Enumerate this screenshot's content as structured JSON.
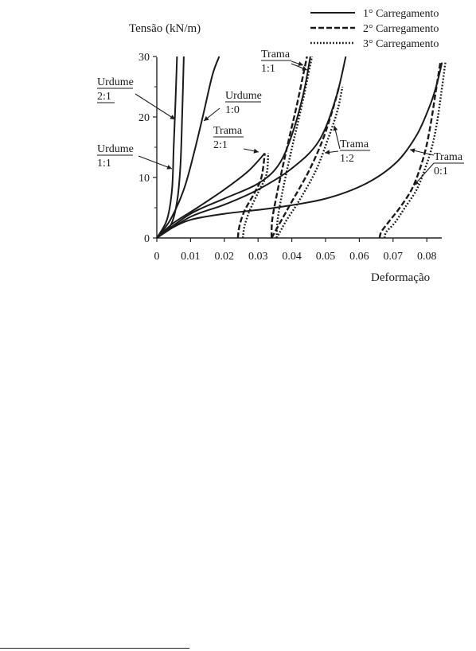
{
  "chart_data": {
    "type": "line",
    "title": "",
    "ylabel": "Tensão (kN/m)",
    "xlabel": "Deformação",
    "xlim": [
      0,
      0.085
    ],
    "ylim": [
      0,
      30
    ],
    "x_ticks": [
      0,
      0.01,
      0.02,
      0.03,
      0.04,
      0.05,
      0.06,
      0.07,
      0.08
    ],
    "x_tick_labels": [
      "0",
      "0.01",
      "0.02",
      "0.03",
      "0.04",
      "0.05",
      "0.06",
      "0.07",
      "0.08"
    ],
    "y_ticks": [
      0,
      10,
      20,
      30
    ],
    "y_tick_labels": [
      "0",
      "10",
      "20",
      "30"
    ],
    "grid": false,
    "legend_position": "top-right",
    "legend": [
      {
        "label": "1° Carregamento",
        "style": "solid"
      },
      {
        "label": "2° Carregamento",
        "style": "dashed"
      },
      {
        "label": "3° Carregamento",
        "style": "dotted"
      }
    ],
    "series": [
      {
        "group": "Urdume 2:1",
        "loading": 1,
        "style": "solid",
        "points": [
          [
            0,
            0
          ],
          [
            0.003,
            3
          ],
          [
            0.0045,
            8
          ],
          [
            0.005,
            15
          ],
          [
            0.0055,
            22
          ],
          [
            0.006,
            30
          ]
        ]
      },
      {
        "group": "Urdume 1:1",
        "loading": 1,
        "style": "solid",
        "points": [
          [
            0,
            0
          ],
          [
            0.004,
            2
          ],
          [
            0.006,
            6
          ],
          [
            0.007,
            12
          ],
          [
            0.0075,
            20
          ],
          [
            0.008,
            30
          ]
        ]
      },
      {
        "group": "Urdume 1:0",
        "loading": 1,
        "style": "solid",
        "points": [
          [
            0,
            0
          ],
          [
            0.004,
            3
          ],
          [
            0.008,
            8
          ],
          [
            0.011,
            14
          ],
          [
            0.014,
            21
          ],
          [
            0.0165,
            27
          ],
          [
            0.0185,
            30
          ]
        ]
      },
      {
        "group": "Trama 2:1",
        "loading": 1,
        "style": "solid",
        "points": [
          [
            0,
            0
          ],
          [
            0.005,
            2.5
          ],
          [
            0.012,
            5
          ],
          [
            0.02,
            8
          ],
          [
            0.027,
            11
          ],
          [
            0.032,
            14
          ]
        ]
      },
      {
        "group": "Trama 2:1",
        "loading": 2,
        "style": "dashed",
        "points": [
          [
            0.024,
            0
          ],
          [
            0.0245,
            2
          ],
          [
            0.026,
            4.5
          ],
          [
            0.029,
            7.5
          ],
          [
            0.031,
            10
          ],
          [
            0.032,
            14
          ]
        ]
      },
      {
        "group": "Trama 2:1",
        "loading": 3,
        "style": "dotted",
        "points": [
          [
            0.0255,
            0
          ],
          [
            0.026,
            2
          ],
          [
            0.0275,
            4.5
          ],
          [
            0.03,
            7.5
          ],
          [
            0.0325,
            10.5
          ],
          [
            0.033,
            14
          ]
        ]
      },
      {
        "group": "Trama 1:1",
        "loading": 1,
        "style": "solid",
        "points": [
          [
            0,
            0
          ],
          [
            0.01,
            4
          ],
          [
            0.02,
            6.5
          ],
          [
            0.03,
            9
          ],
          [
            0.036,
            12
          ],
          [
            0.04,
            17
          ],
          [
            0.0435,
            24
          ],
          [
            0.0455,
            30
          ]
        ]
      },
      {
        "group": "Trama 1:1",
        "loading": 2,
        "style": "dashed",
        "points": [
          [
            0.034,
            0
          ],
          [
            0.0342,
            3
          ],
          [
            0.0355,
            7
          ],
          [
            0.037,
            11
          ],
          [
            0.039,
            16
          ],
          [
            0.0415,
            22
          ],
          [
            0.0445,
            30
          ]
        ]
      },
      {
        "group": "Trama 1:1",
        "loading": 3,
        "style": "dotted",
        "points": [
          [
            0.0355,
            0
          ],
          [
            0.0358,
            3
          ],
          [
            0.037,
            7
          ],
          [
            0.0385,
            11
          ],
          [
            0.0405,
            16
          ],
          [
            0.043,
            22
          ],
          [
            0.046,
            30
          ]
        ]
      },
      {
        "group": "Trama 1:2",
        "loading": 1,
        "style": "solid",
        "points": [
          [
            0,
            0
          ],
          [
            0.01,
            3.5
          ],
          [
            0.02,
            5.5
          ],
          [
            0.03,
            8
          ],
          [
            0.04,
            11.5
          ],
          [
            0.048,
            16
          ],
          [
            0.053,
            23
          ],
          [
            0.056,
            30
          ]
        ]
      },
      {
        "group": "Trama 1:2",
        "loading": 2,
        "style": "dashed",
        "points": [
          [
            0.034,
            0
          ],
          [
            0.035,
            1
          ],
          [
            0.037,
            3
          ],
          [
            0.04,
            6
          ],
          [
            0.045,
            11
          ],
          [
            0.049,
            16
          ],
          [
            0.052,
            21
          ],
          [
            0.054,
            25
          ]
        ]
      },
      {
        "group": "Trama 1:2",
        "loading": 3,
        "style": "dotted",
        "points": [
          [
            0.0355,
            0
          ],
          [
            0.0365,
            1
          ],
          [
            0.0385,
            3
          ],
          [
            0.042,
            6
          ],
          [
            0.047,
            11
          ],
          [
            0.0505,
            16
          ],
          [
            0.0535,
            21
          ],
          [
            0.055,
            25
          ]
        ]
      },
      {
        "group": "Trama 0:1",
        "loading": 1,
        "style": "solid",
        "points": [
          [
            0,
            0
          ],
          [
            0.004,
            1.5
          ],
          [
            0.01,
            3
          ],
          [
            0.02,
            4
          ],
          [
            0.035,
            5
          ],
          [
            0.05,
            6.5
          ],
          [
            0.062,
            9
          ],
          [
            0.071,
            12.5
          ],
          [
            0.077,
            17
          ],
          [
            0.081,
            22
          ],
          [
            0.083,
            25.5
          ],
          [
            0.0845,
            29
          ]
        ]
      },
      {
        "group": "Trama 0:1",
        "loading": 2,
        "style": "dashed",
        "points": [
          [
            0.066,
            0
          ],
          [
            0.0665,
            1
          ],
          [
            0.0685,
            2.5
          ],
          [
            0.072,
            5
          ],
          [
            0.0755,
            8
          ],
          [
            0.078,
            11.5
          ],
          [
            0.0798,
            15
          ],
          [
            0.0812,
            19
          ],
          [
            0.0826,
            24
          ],
          [
            0.084,
            29
          ]
        ]
      },
      {
        "group": "Trama 0:1",
        "loading": 3,
        "style": "dotted",
        "points": [
          [
            0.0675,
            0
          ],
          [
            0.068,
            1
          ],
          [
            0.0705,
            2.5
          ],
          [
            0.0735,
            5
          ],
          [
            0.077,
            8
          ],
          [
            0.0795,
            11.5
          ],
          [
            0.0815,
            15
          ],
          [
            0.083,
            19
          ],
          [
            0.0843,
            24
          ],
          [
            0.0855,
            29
          ]
        ]
      }
    ],
    "annotations": [
      {
        "lines": [
          "Urdume",
          "2:1"
        ],
        "underline": "both"
      },
      {
        "lines": [
          "Urdume",
          "1:0"
        ],
        "underline": "first"
      },
      {
        "lines": [
          "Urdume",
          "1:1"
        ],
        "underline": "first"
      },
      {
        "lines": [
          "Trama",
          "2:1"
        ],
        "underline": "first"
      },
      {
        "lines": [
          "Trama",
          "1:1"
        ],
        "underline": "first"
      },
      {
        "lines": [
          "Trama",
          "1:2"
        ],
        "underline": "first"
      },
      {
        "lines": [
          "Trama",
          "0:1"
        ],
        "underline": "first"
      }
    ]
  }
}
